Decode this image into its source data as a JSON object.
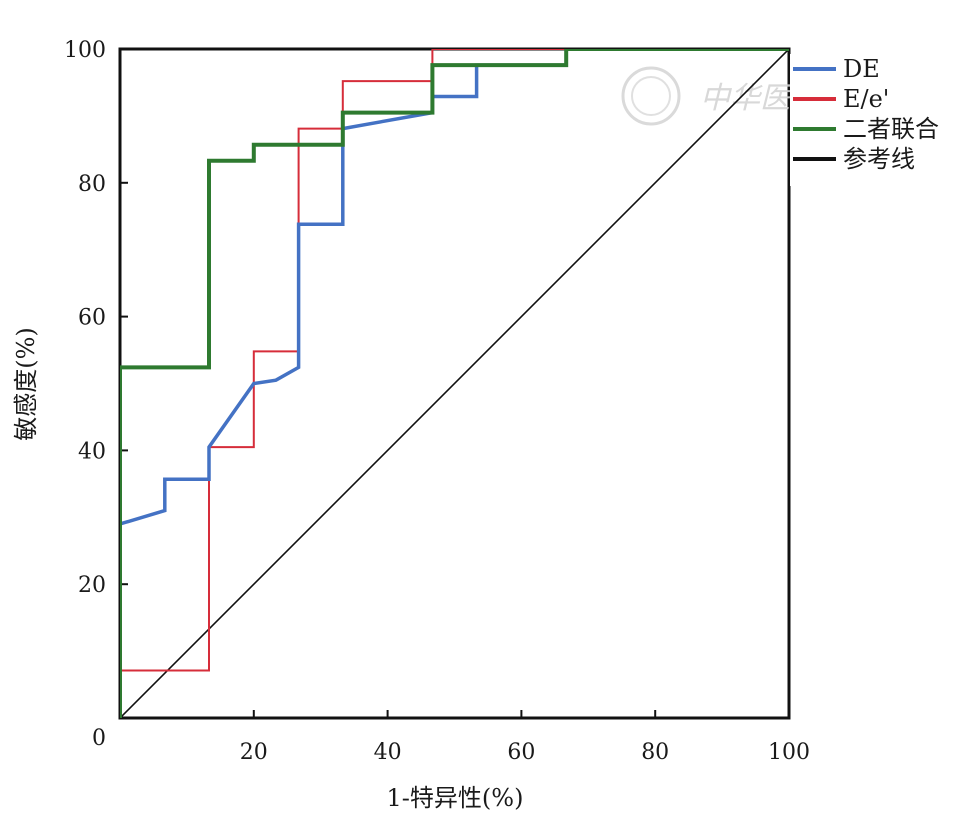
{
  "chart_data": {
    "type": "line",
    "xlabel": "1-特异性(%)",
    "ylabel": "敏感度(%)",
    "xlim": [
      0,
      100
    ],
    "ylim": [
      0,
      100
    ],
    "xticks": [
      20,
      40,
      60,
      80,
      100
    ],
    "yticks": [
      0,
      20,
      40,
      60,
      80,
      100
    ],
    "legend_position": "right-top",
    "series": [
      {
        "name": "DE",
        "color": "#4472c4",
        "points": [
          [
            0,
            0
          ],
          [
            0,
            29
          ],
          [
            6.7,
            31
          ],
          [
            6.7,
            35.7
          ],
          [
            13.3,
            35.7
          ],
          [
            13.3,
            40.5
          ],
          [
            20,
            50
          ],
          [
            23.3,
            50.5
          ],
          [
            26.7,
            52.4
          ],
          [
            26.7,
            73.8
          ],
          [
            33.3,
            73.8
          ],
          [
            33.3,
            88.1
          ],
          [
            46.7,
            90.5
          ],
          [
            46.7,
            92.9
          ],
          [
            53.3,
            92.9
          ],
          [
            53.3,
            97.6
          ],
          [
            66.7,
            97.6
          ],
          [
            66.7,
            100
          ],
          [
            100,
            100
          ]
        ]
      },
      {
        "name": "E/e'",
        "color": "#d62d3a",
        "points": [
          [
            0,
            0
          ],
          [
            0,
            7.1
          ],
          [
            13.3,
            7.1
          ],
          [
            13.3,
            40.5
          ],
          [
            20,
            40.5
          ],
          [
            20,
            54.8
          ],
          [
            26.7,
            54.8
          ],
          [
            26.7,
            88.1
          ],
          [
            33.3,
            88.1
          ],
          [
            33.3,
            95.2
          ],
          [
            46.7,
            95.2
          ],
          [
            46.7,
            100
          ],
          [
            100,
            100
          ]
        ]
      },
      {
        "name": "二者联合",
        "color": "#2e7a30",
        "points": [
          [
            0,
            0
          ],
          [
            0,
            52.4
          ],
          [
            13.3,
            52.4
          ],
          [
            13.3,
            83.3
          ],
          [
            20,
            83.3
          ],
          [
            20,
            85.7
          ],
          [
            33.3,
            85.7
          ],
          [
            33.3,
            90.5
          ],
          [
            46.7,
            90.5
          ],
          [
            46.7,
            97.6
          ],
          [
            66.7,
            97.6
          ],
          [
            66.7,
            100
          ],
          [
            100,
            100
          ]
        ]
      },
      {
        "name": "参考线",
        "color": "#111111",
        "points": [
          [
            0,
            0
          ],
          [
            100,
            100
          ]
        ]
      }
    ]
  },
  "watermark": {
    "text": "中华医学会"
  }
}
